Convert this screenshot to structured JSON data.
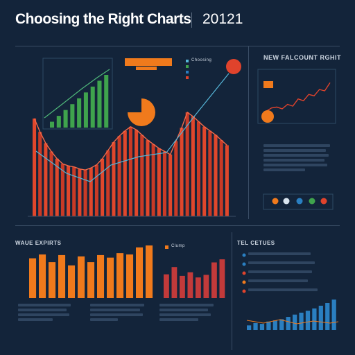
{
  "header": {
    "title": "Choosing the Right Charts",
    "year": "20121"
  },
  "colors": {
    "background": "#13243a",
    "orange": "#f07a1c",
    "red": "#e0432c",
    "green": "#3fa34d",
    "blue": "#2a7fc1",
    "cyan_line": "#56b6d8"
  },
  "panels": {
    "top_right_title": "NEW FALCOUNT RGHIT",
    "bottom_left_title": "WAUE EXPIRTS",
    "bottom_right_title": "TEL CETUES",
    "legend_top": "Choosing",
    "legend_bottom_left": "Clump"
  },
  "chart_data": [
    {
      "type": "bar",
      "id": "green-inset",
      "values": [
        1,
        2,
        3,
        4,
        5,
        6,
        7,
        8,
        9
      ],
      "color": "#3fa34d"
    },
    {
      "type": "bar",
      "id": "main-red",
      "values": [
        9.5,
        8.2,
        7.1,
        6.3,
        5.6,
        5.1,
        4.9,
        4.8,
        4.6,
        4.5,
        4.7,
        5.0,
        5.6,
        6.4,
        7.2,
        7.8,
        8.3,
        8.7,
        8.4,
        7.9,
        7.4,
        7.0,
        6.6,
        6.3,
        6.0,
        7.3,
        8.6,
        10.1,
        9.7,
        9.2,
        8.7,
        8.3,
        7.9,
        7.4,
        6.9
      ]
    },
    {
      "type": "pie",
      "id": "pie-inset",
      "slices": [
        {
          "value": 75,
          "color": "#f07a1c"
        },
        {
          "value": 25,
          "color": "#13243a"
        }
      ]
    },
    {
      "type": "line",
      "id": "top-right-line",
      "values": [
        1.5,
        2.2,
        2.4,
        2.0,
        3.0,
        2.6,
        4.2,
        3.8,
        5.2,
        4.9,
        6.3,
        6.0,
        7.8
      ],
      "color": "#e0432c"
    },
    {
      "type": "bar",
      "id": "bottom-orange",
      "values": [
        6.2,
        6.8,
        5.6,
        6.7,
        5.1,
        6.5,
        5.6,
        6.7,
        6.3,
        7.0,
        6.8,
        7.9,
        8.2
      ],
      "color": "#f07a1c"
    },
    {
      "type": "bar",
      "id": "bottom-red-small",
      "values": [
        4.6,
        6.0,
        4.3,
        5.0,
        4.0,
        4.5,
        6.9,
        7.5
      ],
      "color": "#c23a3a"
    },
    {
      "type": "bar",
      "id": "bottom-right-blue",
      "values": [
        1.2,
        1.8,
        1.6,
        2.2,
        2.5,
        2.8,
        3.4,
        4.0,
        4.5,
        5.0,
        5.6,
        6.3,
        7.0,
        7.9
      ],
      "color": "#2a7fc1"
    }
  ]
}
